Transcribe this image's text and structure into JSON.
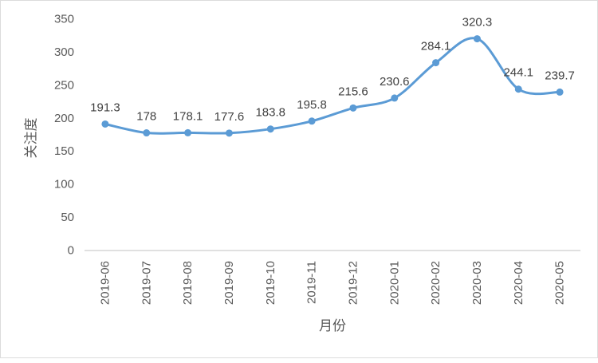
{
  "chart_data": {
    "type": "line",
    "title": "",
    "x": [
      "2019-06",
      "2019-07",
      "2019-08",
      "2019-09",
      "2019-10",
      "2019-11",
      "2019-12",
      "2020-01",
      "2020-02",
      "2020-03",
      "2020-04",
      "2020-05"
    ],
    "series": [
      {
        "name": "关注度",
        "values": [
          191.3,
          178,
          178.1,
          177.6,
          183.8,
          195.8,
          215.6,
          230.6,
          284.1,
          320.3,
          244.1,
          239.7
        ]
      }
    ],
    "data_labels": [
      "191.3",
      "178",
      "178.1",
      "177.6",
      "183.8",
      "195.8",
      "215.6",
      "230.6",
      "284.1",
      "320.3",
      "244.1",
      "239.7"
    ],
    "xlabel": "月份",
    "ylabel": "关注度",
    "ylim": [
      0,
      350
    ],
    "ytick_interval": 50,
    "yticks": [
      0,
      50,
      100,
      150,
      200,
      250,
      300,
      350
    ],
    "grid": false,
    "legend": false,
    "smooth_line": true,
    "marker": "circle",
    "colors": {
      "line": "#5B9BD5",
      "marker": "#5B9BD5",
      "data_label_text": "#404040",
      "axis_text": "#595959",
      "axis_line": "#d6d6d6",
      "background": "#ffffff",
      "frame_border": "#dcdcdc"
    }
  }
}
